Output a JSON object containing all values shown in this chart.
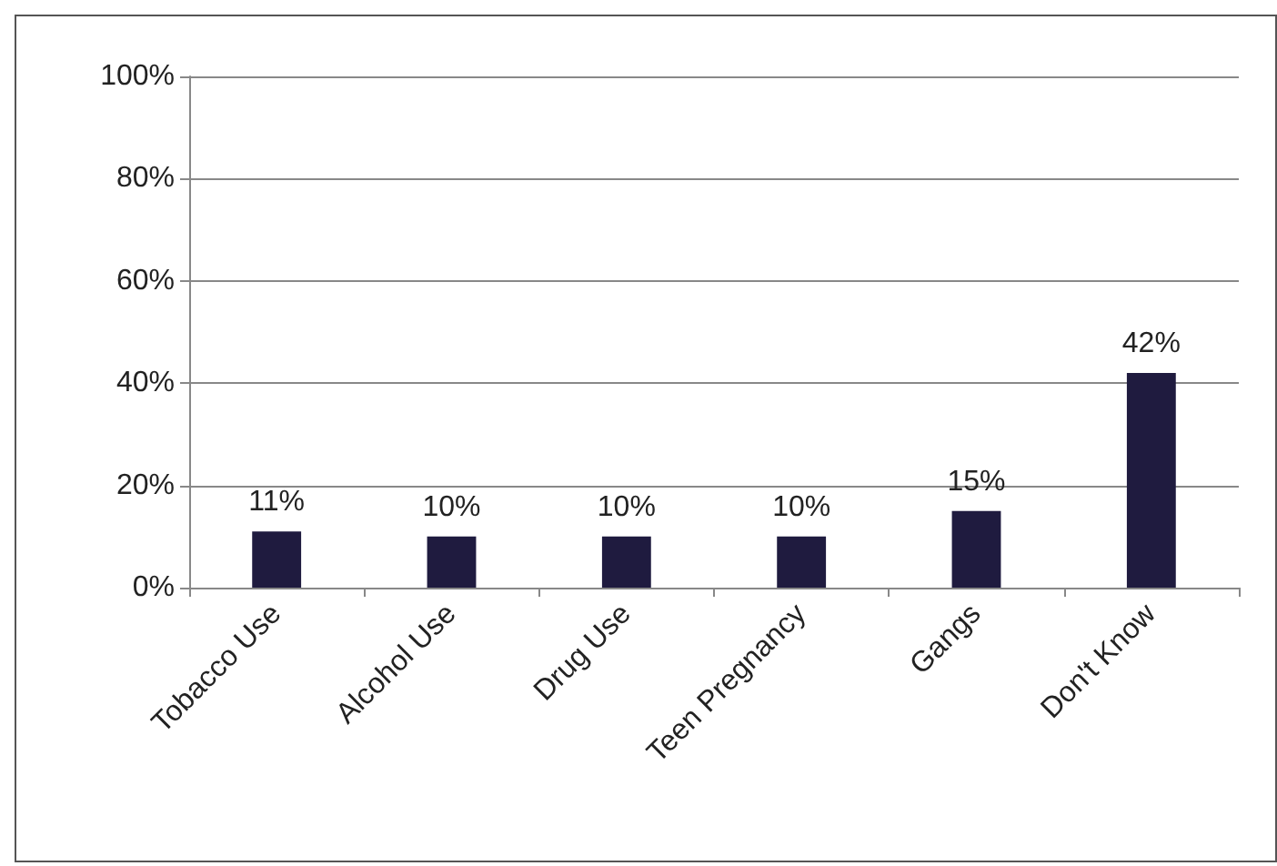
{
  "chart_data": {
    "type": "bar",
    "categories": [
      "Tobacco Use",
      "Alcohol Use",
      "Drug Use",
      "Teen Pregnancy",
      "Gangs",
      "Don't Know"
    ],
    "values": [
      11,
      10,
      10,
      10,
      15,
      42
    ],
    "value_labels": [
      "11%",
      "10%",
      "10%",
      "10%",
      "15%",
      "42%"
    ],
    "color": "#1f1b3f",
    "ylim": [
      0,
      100
    ],
    "yticks": [
      {
        "value": 0,
        "label": "0%"
      },
      {
        "value": 20,
        "label": "20%"
      },
      {
        "value": 40,
        "label": "40%"
      },
      {
        "value": 60,
        "label": "60%"
      },
      {
        "value": 80,
        "label": "80%"
      },
      {
        "value": 100,
        "label": "100%"
      }
    ],
    "grid": "y"
  }
}
